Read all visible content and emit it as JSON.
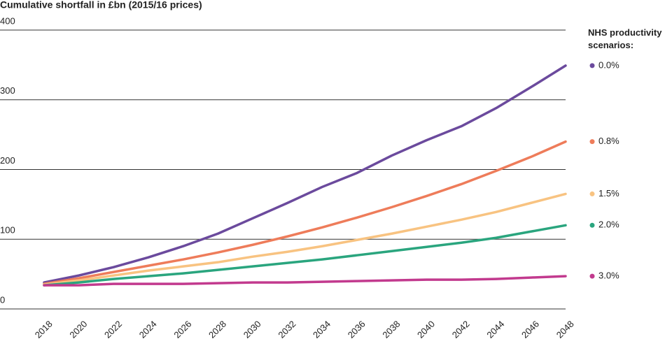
{
  "chart_data": {
    "type": "line",
    "title": "Cumulative shortfall in £bn (2015/16 prices)",
    "legend_title": "NHS productivity scenarios:",
    "legend_position": "right",
    "categories": [
      "2018",
      "2020",
      "2022",
      "2024",
      "2026",
      "2028",
      "2030",
      "2032",
      "2034",
      "2036",
      "2038",
      "2040",
      "2042",
      "2044",
      "2046",
      "2048"
    ],
    "ylim": [
      0,
      400
    ],
    "yticks": [
      0,
      100,
      200,
      300,
      400
    ],
    "grid": true,
    "series": [
      {
        "name": "0.0%",
        "color": "#6b4a9d",
        "values": [
          38,
          48,
          60,
          74,
          90,
          108,
          130,
          152,
          175,
          195,
          220,
          242,
          262,
          288,
          318,
          349
        ]
      },
      {
        "name": "0.8%",
        "color": "#ee7c5a",
        "values": [
          36,
          44,
          53,
          62,
          71,
          81,
          92,
          104,
          117,
          131,
          146,
          162,
          179,
          198,
          218,
          240
        ]
      },
      {
        "name": "1.5%",
        "color": "#f8c381",
        "values": [
          35,
          41,
          48,
          55,
          61,
          67,
          75,
          82,
          90,
          99,
          108,
          118,
          128,
          139,
          152,
          165
        ]
      },
      {
        "name": "2.0%",
        "color": "#2aa57e",
        "values": [
          34,
          38,
          43,
          47,
          51,
          56,
          61,
          66,
          71,
          77,
          83,
          89,
          95,
          102,
          111,
          120
        ]
      },
      {
        "name": "3.0%",
        "color": "#c23a8e",
        "values": [
          34,
          34,
          36,
          36,
          36,
          37,
          38,
          38,
          39,
          40,
          41,
          42,
          42,
          43,
          45,
          47
        ]
      }
    ]
  }
}
